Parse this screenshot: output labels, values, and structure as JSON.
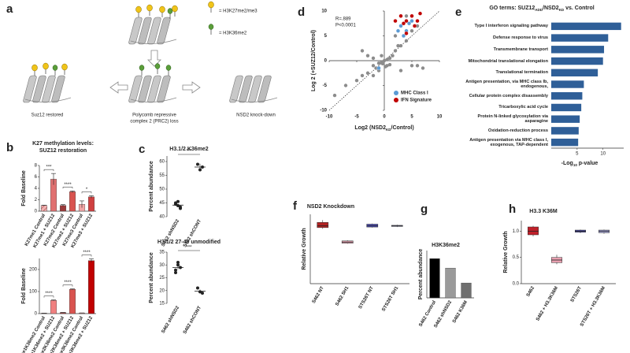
{
  "panel_letters": [
    "a",
    "b",
    "c",
    "d",
    "e",
    "f",
    "g",
    "h"
  ],
  "diagram": {
    "legend": [
      "= H3K27me2/me3",
      "= H3K36me2"
    ],
    "restored": "Suz12 restored",
    "loss": [
      "Polycomb repressive",
      "complex 2 (PRC2) loss"
    ],
    "knockdown": "NSD2 knock-down"
  },
  "chart_data": [
    {
      "type": "bar",
      "title_lines": [
        "K27 methylation levels:",
        "SUZ12 restoration"
      ],
      "ylabel": "Fold Baseline",
      "categories": [
        "K27me1 Control",
        "K27me1 + SUZ12",
        "K27me2 Control",
        "K27me2 + SUZ12",
        "K27me3 Control",
        "K27me3 + SUZ12"
      ],
      "values": [
        1.0,
        5.6,
        1.0,
        3.4,
        1.2,
        2.5
      ],
      "errors": [
        0.05,
        1.0,
        0.15,
        0.15,
        0.6,
        0.2
      ],
      "colors": [
        "#f0b0b0",
        "#e07070",
        "#9c3a3a",
        "#d9534f",
        "#f2a5a5",
        "#d04040"
      ],
      "hatched_bars": [
        0
      ],
      "annotations": [
        "***",
        "****",
        "*"
      ],
      "ylim": [
        0,
        8
      ],
      "yticks": [
        0,
        2,
        4,
        6,
        8
      ]
    },
    {
      "type": "bar",
      "ylabel": "Fold Baseline",
      "categories": [
        "K27me1K36me2 Control",
        "K27me1K36me2 + SUZ12",
        "K27me2K36me2 Control",
        "K27me2K36me2 + SUZ12",
        "K27me3K36me2 Control",
        "K27me3K36me2 + SUZ12"
      ],
      "values": [
        2,
        60,
        5,
        110,
        3,
        240
      ],
      "errors": [
        0.2,
        2,
        0.3,
        2,
        0.2,
        8
      ],
      "colors": [
        "#f0b0b0",
        "#f08080",
        "#9c3a3a",
        "#d9534f",
        "#f2a5a5",
        "#c00000"
      ],
      "hatched_bars": [],
      "annotations": [
        "****",
        "****",
        "****"
      ],
      "ylim": [
        0,
        250
      ],
      "yticks": [
        0,
        100,
        200
      ]
    },
    {
      "type": "strip",
      "title": "H3.1/2 K36me2",
      "ylabel": "Percent abundance",
      "categories": [
        "S462 shNSD2",
        "S462 shCONT"
      ],
      "values": [
        [
          45,
          44,
          43,
          44.5,
          45.5,
          43.5
        ],
        [
          59,
          57,
          58
        ]
      ],
      "means": [
        44.2,
        58
      ],
      "errors": [
        0.5,
        1.2
      ],
      "annotation": "***",
      "ylim": [
        40,
        62
      ],
      "yticks": [
        40,
        45,
        50,
        55,
        60
      ]
    },
    {
      "type": "strip",
      "title": "H3.1/2  27-40 unmodified",
      "ylabel": "Percent abundance",
      "categories": [
        "S462 shNSD2",
        "S462 shCONT"
      ],
      "values": [
        [
          28,
          30,
          29,
          27,
          31
        ],
        [
          21,
          19.5,
          19
        ]
      ],
      "means": [
        29,
        19.8
      ],
      "errors": [
        0.7,
        0.6
      ],
      "annotation": "***",
      "ylim": [
        15,
        35
      ],
      "yticks": [
        15,
        20,
        25,
        30,
        35
      ]
    },
    {
      "type": "scatter",
      "xlabel_parts": [
        "Log2 (NSD2",
        "KD",
        "/Control)"
      ],
      "ylabel": "Log 2 (+SUZ12/Control)",
      "annotations": [
        "R=.889",
        "P<0.0001"
      ],
      "legend": "lower right",
      "points": {
        "color": "#8c8c8c",
        "x": [
          -9,
          -7,
          -4,
          -3,
          -2,
          -1,
          -0.5,
          0,
          0.5,
          -1.5,
          -2,
          -5,
          1,
          1.5,
          2,
          3,
          4,
          5,
          6,
          3,
          2,
          4,
          -3,
          -4,
          5,
          6,
          7,
          3,
          -1,
          -0.5,
          0.5,
          -2,
          1,
          0.2,
          -0.3,
          2.5
        ],
        "y": [
          -7,
          -5,
          -3,
          -2.5,
          -1,
          -0.5,
          -0.3,
          0,
          0.2,
          -1.5,
          -3,
          -4,
          0.5,
          1,
          2,
          3,
          4,
          6,
          7,
          7,
          5,
          9,
          1,
          2,
          -1,
          -1,
          -1.5,
          -2,
          -2,
          1,
          -1,
          0.5,
          -0.8,
          -1.2,
          -0.6,
          3
        ]
      },
      "series": [
        {
          "name": "MHC Class I",
          "color": "#5b9bd5",
          "x": [
            3,
            4,
            5,
            3.5,
            4.5,
            -1,
            2.5
          ],
          "y": [
            7,
            6,
            8,
            5,
            7.5,
            -1.5,
            6
          ]
        },
        {
          "name": "IFN Signature",
          "color": "#c00000",
          "x": [
            4,
            5,
            6,
            3,
            5.5,
            4,
            6.5,
            3.5,
            2
          ],
          "y": [
            8,
            9,
            8,
            9,
            7,
            5.5,
            9.5,
            7.5,
            8
          ]
        }
      ],
      "xlim": [
        -10,
        10
      ],
      "ylim": [
        -10,
        10
      ],
      "xticks": [
        -10,
        -5,
        0,
        5,
        10
      ],
      "yticks": [
        -10,
        -5,
        0,
        5,
        10
      ]
    },
    {
      "type": "hbar",
      "title_parts": [
        "GO terms: SUZ12",
        "ADD",
        "/NSD2",
        "KD",
        " vs. Control"
      ],
      "xlabel_parts": [
        "-Log",
        "10",
        " p-value"
      ],
      "color": "#2f5f98",
      "categories": [
        "Type I interferon signaling pathway",
        "Defense response to virus",
        "Transmembrane transport",
        "Mitochondrial translational elongation",
        "Translational termination",
        "Antigen presentation, via MHC class Ib, endogenous,",
        "Cellular protein complex disassembly",
        "Tricarboxylic acid cycle",
        "Protein N-linked glycosylation via asparagine",
        "Oxidation-reduction process",
        "Antigen presentation via MHC class I, exogenous, TAP-dependent"
      ],
      "values": [
        13.5,
        11,
        10.2,
        10,
        9,
        6.3,
        6,
        5.8,
        5.5,
        5.3,
        5.2
      ],
      "xlim": [
        0,
        14
      ],
      "xticks": [
        5,
        10
      ]
    },
    {
      "type": "box",
      "title": "NSD2 Knockdown",
      "ylabel": "Relative Growth",
      "categories": [
        "S462 NT",
        "S462 SH1",
        "STS26T NT",
        "STS26T SH1"
      ],
      "medians": [
        1.0,
        0.72,
        1.0,
        1.0
      ],
      "q1": [
        0.97,
        0.7,
        0.98,
        0.99
      ],
      "q3": [
        1.06,
        0.74,
        1.03,
        1.01
      ],
      "min": [
        0.95,
        0.69,
        0.97,
        0.98
      ],
      "max": [
        1.1,
        0.75,
        1.04,
        1.02
      ],
      "colors": [
        "#b22222",
        "#e6a0b0",
        "#4b4bb0",
        "#9b9bd8"
      ],
      "ylim": [
        0,
        1.2
      ]
    },
    {
      "type": "bar",
      "title": "H3K36me2",
      "ylabel": "Percent abundance",
      "categories": [
        "S462 Control",
        "S462 shNSD2",
        "S462 K36M"
      ],
      "values": [
        58,
        44,
        22
      ],
      "colors": [
        "#000000",
        "#9a9a9a",
        "#6f6f6f"
      ],
      "ylim": [
        0,
        70
      ]
    },
    {
      "type": "box",
      "title": "H3.3 K36M",
      "ylabel": "Relative Growth",
      "categories": [
        "S462",
        "S462 + H3.3K36M",
        "STS26T",
        "STS26T + H3.3K36M"
      ],
      "medians": [
        1.0,
        0.45,
        1.0,
        1.0
      ],
      "q1": [
        0.93,
        0.4,
        0.98,
        0.97
      ],
      "q3": [
        1.08,
        0.5,
        1.02,
        1.02
      ],
      "min": [
        0.9,
        0.37,
        0.96,
        0.95
      ],
      "max": [
        1.1,
        0.55,
        1.03,
        1.03
      ],
      "colors": [
        "#c0202a",
        "#e8a0b0",
        "#4545a0",
        "#9c9cd0"
      ],
      "ylim": [
        0,
        1.2
      ],
      "yticks": [
        {
          "value": 0,
          "label": "0.0"
        },
        {
          "value": 0.5,
          "label": "0.5"
        },
        {
          "value": 1,
          "label": "1.0"
        }
      ]
    }
  ]
}
